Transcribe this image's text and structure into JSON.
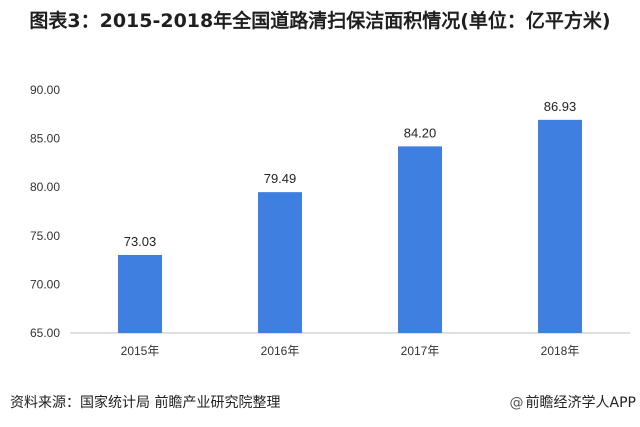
{
  "title": "图表3：2015-2018年全国道路清扫保洁面积情况(单位：亿平方米)",
  "source_text": "资料来源：国家统计局 前瞻产业研究院整理",
  "brand": {
    "symbol": "@",
    "text": "前瞻经济学人APP"
  },
  "colors": {
    "bar": "#3f7fe0",
    "axis": "#bfbfbf"
  },
  "chart_data": {
    "type": "bar",
    "categories": [
      "2015年",
      "2016年",
      "2017年",
      "2018年"
    ],
    "values": [
      73.03,
      79.49,
      84.2,
      86.93
    ],
    "value_labels": [
      "73.03",
      "79.49",
      "84.20",
      "86.93"
    ],
    "ylim": [
      65,
      90
    ],
    "yticks": [
      "65.00",
      "70.00",
      "75.00",
      "80.00",
      "85.00",
      "90.00"
    ],
    "grid": false,
    "xlabel": "",
    "ylabel": ""
  }
}
